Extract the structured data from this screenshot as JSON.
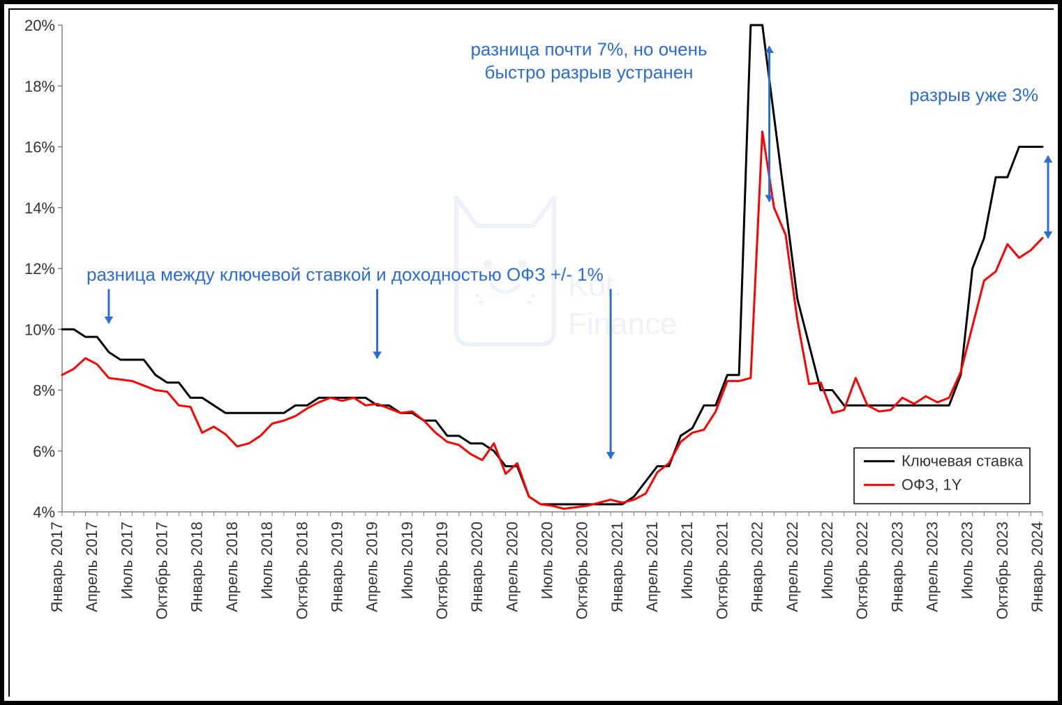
{
  "chart": {
    "type": "line",
    "ylim": [
      4,
      20
    ],
    "ytick_step": 2,
    "ytick_labels": [
      "4%",
      "6%",
      "8%",
      "10%",
      "12%",
      "14%",
      "16%",
      "18%",
      "20%"
    ],
    "y_label_fontsize": 22,
    "x_label_fontsize": 22,
    "x_labels": [
      "Январь 2017",
      "Апрель 2017",
      "Июль 2017",
      "Октябрь 2017",
      "Январь 2018",
      "Апрель 2018",
      "Июль 2018",
      "Октябрь 2018",
      "Январь 2019",
      "Апрель 2019",
      "Июль 2019",
      "Октябрь 2019",
      "Январь 2020",
      "Апрель 2020",
      "Июль 2020",
      "Октябрь 2020",
      "Январь 2021",
      "Апрель 2021",
      "Июль 2021",
      "Октябрь 2021",
      "Январь 2022",
      "Апрель 2022",
      "Июль 2022",
      "Октябрь 2022",
      "Январь 2023",
      "Апрель 2023",
      "Июль 2023",
      "Октябрь 2023",
      "Январь 2024"
    ],
    "series": [
      {
        "name": "Ключевая ставка",
        "color": "#000000",
        "line_width": 3,
        "values": [
          10.0,
          10.0,
          9.75,
          9.75,
          9.25,
          9.0,
          9.0,
          9.0,
          8.5,
          8.25,
          8.25,
          7.75,
          7.75,
          7.5,
          7.25,
          7.25,
          7.25,
          7.25,
          7.25,
          7.25,
          7.5,
          7.5,
          7.75,
          7.75,
          7.75,
          7.75,
          7.75,
          7.5,
          7.5,
          7.25,
          7.25,
          7.0,
          7.0,
          6.5,
          6.5,
          6.25,
          6.25,
          6.0,
          5.5,
          5.5,
          4.5,
          4.25,
          4.25,
          4.25,
          4.25,
          4.25,
          4.25,
          4.25,
          4.25,
          4.5,
          5.0,
          5.5,
          5.5,
          6.5,
          6.75,
          7.5,
          7.5,
          8.5,
          8.5,
          20.0,
          20.0,
          17.0,
          14.0,
          11.0,
          9.5,
          8.0,
          8.0,
          7.5,
          7.5,
          7.5,
          7.5,
          7.5,
          7.5,
          7.5,
          7.5,
          7.5,
          7.5,
          8.5,
          12.0,
          13.0,
          15.0,
          15.0,
          16.0,
          16.0,
          16.0
        ]
      },
      {
        "name": "ОФЗ, 1Y",
        "color": "#ff0000",
        "line_width": 3,
        "values": [
          8.5,
          8.7,
          9.05,
          8.85,
          8.4,
          8.35,
          8.3,
          8.15,
          8.0,
          7.95,
          7.5,
          7.45,
          6.6,
          6.8,
          6.55,
          6.15,
          6.25,
          6.5,
          6.9,
          7.0,
          7.15,
          7.4,
          7.6,
          7.75,
          7.65,
          7.75,
          7.5,
          7.55,
          7.4,
          7.25,
          7.3,
          7.0,
          6.6,
          6.3,
          6.2,
          5.9,
          5.7,
          6.25,
          5.25,
          5.6,
          4.5,
          4.25,
          4.2,
          4.1,
          4.15,
          4.2,
          4.3,
          4.4,
          4.3,
          4.4,
          4.6,
          5.3,
          5.6,
          6.3,
          6.6,
          6.7,
          7.3,
          8.3,
          8.3,
          8.4,
          16.5,
          14.0,
          13.1,
          10.3,
          8.2,
          8.25,
          7.25,
          7.35,
          8.4,
          7.5,
          7.3,
          7.35,
          7.75,
          7.55,
          7.8,
          7.6,
          7.75,
          8.6,
          10.1,
          11.6,
          11.9,
          12.8,
          12.35,
          12.6,
          13.0
        ]
      }
    ],
    "legend": {
      "items": [
        "Ключевая ставка",
        "ОФЗ, 1Y"
      ],
      "colors": [
        "#000000",
        "#ff0000"
      ],
      "fontsize": 22,
      "border_color": "#000000"
    },
    "axis_color": "#808080",
    "tick_len": 6,
    "plot_bg": "#ffffff"
  },
  "annotations": {
    "a1": {
      "text": "разница между ключевой ставкой и доходностью ОФЗ +/- 1%",
      "color": "#2b6cd6",
      "fontsize": 26
    },
    "a2_line1": "разница почти 7%, но очень",
    "a2_line2": "быстро разрыв устранен",
    "a3": "разрыв уже 3%"
  },
  "watermark": {
    "line1": "Kot.",
    "line2": "Finance",
    "color": "#dbe7f2"
  }
}
